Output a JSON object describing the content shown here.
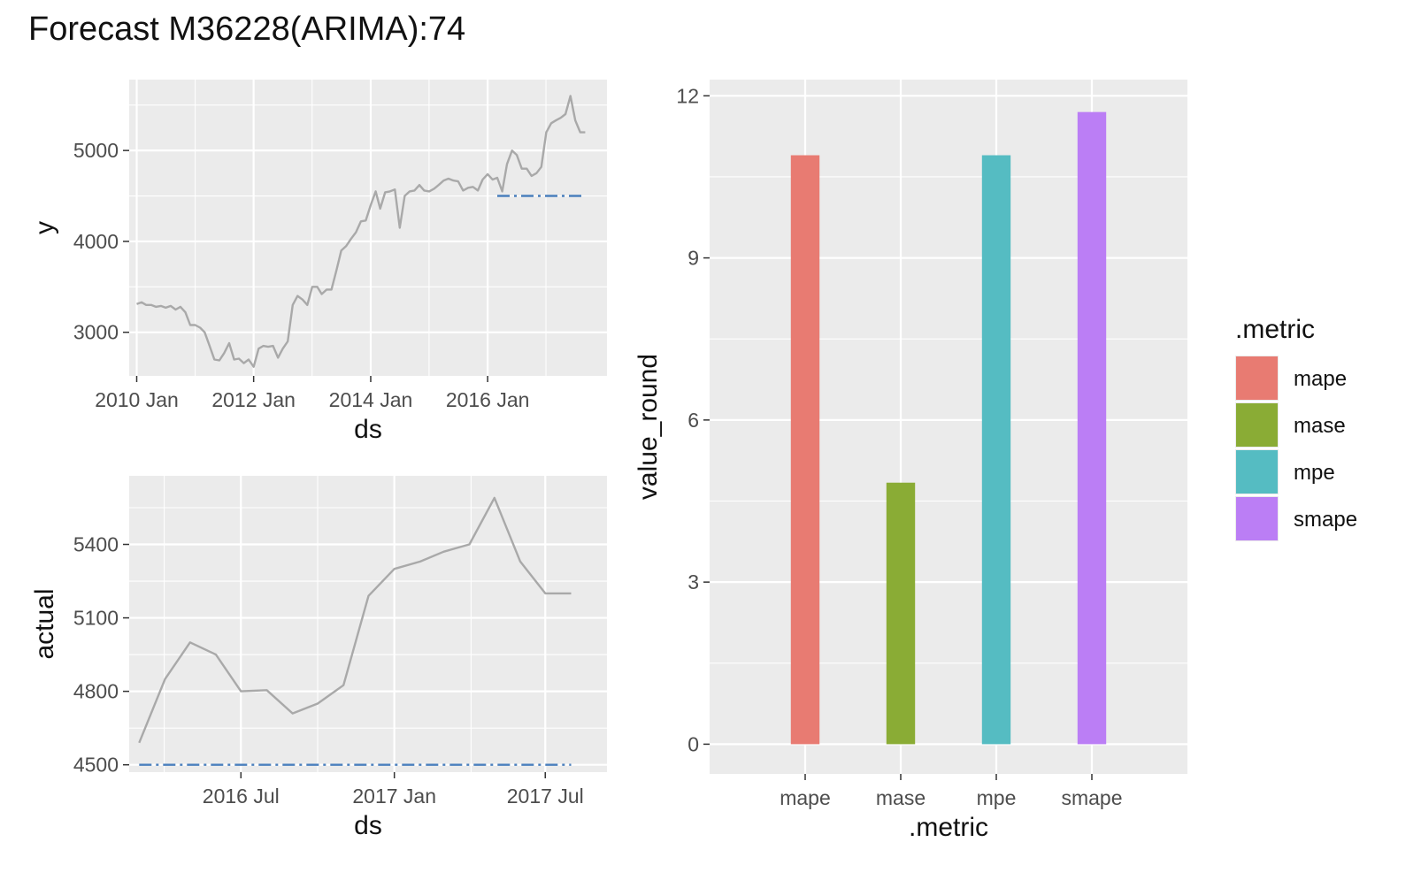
{
  "title": "Forecast M36228(ARIMA):74",
  "colors": {
    "panel": "#EBEBEB",
    "grid": "#FFFFFF",
    "actual_line": "#A9A9A9",
    "forecast_line": "#4A7FBD",
    "tick_text": "#4D4D4D"
  },
  "chart_data": [
    {
      "id": "history",
      "type": "line",
      "xlabel": "ds",
      "ylabel": "y",
      "xlim": [
        "2009-11-15",
        "2018-01-15"
      ],
      "ylim": [
        2520,
        5780
      ],
      "x_ticks": [
        {
          "value": "2010-01",
          "label": "2010 Jan"
        },
        {
          "value": "2012-01",
          "label": "2012 Jan"
        },
        {
          "value": "2014-01",
          "label": "2014 Jan"
        },
        {
          "value": "2016-01",
          "label": "2016 Jan"
        }
      ],
      "y_ticks": [
        3000,
        4000,
        5000
      ],
      "grid": true,
      "series": [
        {
          "style": "solid",
          "color": "#A9A9A9",
          "points": [
            [
              "2010-01",
              3310
            ],
            [
              "2010-02",
              3330
            ],
            [
              "2010-03",
              3300
            ],
            [
              "2010-04",
              3300
            ],
            [
              "2010-05",
              3280
            ],
            [
              "2010-06",
              3290
            ],
            [
              "2010-07",
              3270
            ],
            [
              "2010-08",
              3290
            ],
            [
              "2010-09",
              3250
            ],
            [
              "2010-10",
              3280
            ],
            [
              "2010-11",
              3220
            ],
            [
              "2010-12",
              3080
            ],
            [
              "2011-01",
              3080
            ],
            [
              "2011-02",
              3050
            ],
            [
              "2011-03",
              3000
            ],
            [
              "2011-04",
              2850
            ],
            [
              "2011-05",
              2700
            ],
            [
              "2011-06",
              2690
            ],
            [
              "2011-07",
              2770
            ],
            [
              "2011-08",
              2880
            ],
            [
              "2011-09",
              2700
            ],
            [
              "2011-10",
              2710
            ],
            [
              "2011-11",
              2660
            ],
            [
              "2011-12",
              2700
            ],
            [
              "2012-01",
              2620
            ],
            [
              "2012-02",
              2820
            ],
            [
              "2012-03",
              2850
            ],
            [
              "2012-04",
              2840
            ],
            [
              "2012-05",
              2850
            ],
            [
              "2012-06",
              2720
            ],
            [
              "2012-07",
              2820
            ],
            [
              "2012-08",
              2900
            ],
            [
              "2012-09",
              3300
            ],
            [
              "2012-10",
              3400
            ],
            [
              "2012-11",
              3360
            ],
            [
              "2012-12",
              3300
            ],
            [
              "2013-01",
              3500
            ],
            [
              "2013-02",
              3500
            ],
            [
              "2013-03",
              3420
            ],
            [
              "2013-04",
              3470
            ],
            [
              "2013-05",
              3470
            ],
            [
              "2013-06",
              3680
            ],
            [
              "2013-07",
              3900
            ],
            [
              "2013-08",
              3950
            ],
            [
              "2013-09",
              4030
            ],
            [
              "2013-10",
              4100
            ],
            [
              "2013-11",
              4220
            ],
            [
              "2013-12",
              4230
            ],
            [
              "2014-01",
              4400
            ],
            [
              "2014-02",
              4550
            ],
            [
              "2014-03",
              4360
            ],
            [
              "2014-04",
              4540
            ],
            [
              "2014-05",
              4550
            ],
            [
              "2014-06",
              4570
            ],
            [
              "2014-07",
              4150
            ],
            [
              "2014-08",
              4500
            ],
            [
              "2014-09",
              4550
            ],
            [
              "2014-10",
              4560
            ],
            [
              "2014-11",
              4620
            ],
            [
              "2014-12",
              4560
            ],
            [
              "2015-01",
              4550
            ],
            [
              "2015-02",
              4580
            ],
            [
              "2015-03",
              4620
            ],
            [
              "2015-04",
              4670
            ],
            [
              "2015-05",
              4690
            ],
            [
              "2015-06",
              4670
            ],
            [
              "2015-07",
              4660
            ],
            [
              "2015-08",
              4560
            ],
            [
              "2015-09",
              4590
            ],
            [
              "2015-10",
              4600
            ],
            [
              "2015-11",
              4560
            ],
            [
              "2015-12",
              4680
            ],
            [
              "2016-01",
              4740
            ],
            [
              "2016-02",
              4680
            ],
            [
              "2016-03",
              4700
            ],
            [
              "2016-04",
              4550
            ],
            [
              "2016-05",
              4850
            ],
            [
              "2016-06",
              5000
            ],
            [
              "2016-07",
              4950
            ],
            [
              "2016-08",
              4800
            ],
            [
              "2016-09",
              4800
            ],
            [
              "2016-10",
              4720
            ],
            [
              "2016-11",
              4750
            ],
            [
              "2016-12",
              4820
            ],
            [
              "2017-01",
              5200
            ],
            [
              "2017-02",
              5300
            ],
            [
              "2017-03",
              5330
            ],
            [
              "2017-04",
              5360
            ],
            [
              "2017-05",
              5400
            ],
            [
              "2017-06",
              5600
            ],
            [
              "2017-07",
              5330
            ],
            [
              "2017-08",
              5200
            ],
            [
              "2017-09",
              5200
            ]
          ]
        },
        {
          "style": "dashdot",
          "color": "#4A7FBD",
          "points": [
            [
              "2016-03",
              4500
            ],
            [
              "2017-09",
              4500
            ]
          ]
        }
      ]
    },
    {
      "id": "test",
      "type": "line",
      "xlabel": "ds",
      "ylabel": "actual",
      "xlim": [
        "2016-02-18",
        "2017-09-13"
      ],
      "ylim": [
        4470,
        5680
      ],
      "x_ticks": [
        {
          "value": "2016-07",
          "label": "2016 Jul"
        },
        {
          "value": "2017-01",
          "label": "2017 Jan"
        },
        {
          "value": "2017-07",
          "label": "2017 Jul"
        }
      ],
      "y_ticks": [
        4500,
        4800,
        5100,
        5400
      ],
      "grid": true,
      "series": [
        {
          "style": "solid",
          "color": "#A9A9A9",
          "points": [
            [
              "2016-03",
              4590
            ],
            [
              "2016-04",
              4850
            ],
            [
              "2016-05",
              5000
            ],
            [
              "2016-06",
              4950
            ],
            [
              "2016-07",
              4800
            ],
            [
              "2016-08",
              4805
            ],
            [
              "2016-09",
              4710
            ],
            [
              "2016-10",
              4750
            ],
            [
              "2016-11",
              4825
            ],
            [
              "2016-12",
              5190
            ],
            [
              "2017-01",
              5300
            ],
            [
              "2017-02",
              5330
            ],
            [
              "2017-03",
              5370
            ],
            [
              "2017-04",
              5400
            ],
            [
              "2017-05",
              5590
            ],
            [
              "2017-06",
              5330
            ],
            [
              "2017-07",
              5200
            ],
            [
              "2017-08",
              5200
            ]
          ]
        },
        {
          "style": "dashdot",
          "color": "#4A7FBD",
          "points": [
            [
              "2016-03",
              4500
            ],
            [
              "2017-08",
              4500
            ]
          ]
        }
      ]
    },
    {
      "id": "metrics",
      "type": "bar",
      "xlabel": ".metric",
      "ylabel": "value_round",
      "categories": [
        "mape",
        "mase",
        "mpe",
        "smape"
      ],
      "values": [
        10.9,
        4.84,
        10.9,
        11.7
      ],
      "colors": [
        "#E87B72",
        "#8AAC35",
        "#55BCC2",
        "#BB7EF5"
      ],
      "ylim": [
        -0.55,
        12.3
      ],
      "y_ticks": [
        0,
        3,
        6,
        9,
        12
      ],
      "grid": true,
      "legend": {
        "title": ".metric",
        "position": "right",
        "entries": [
          "mape",
          "mase",
          "mpe",
          "smape"
        ]
      }
    }
  ]
}
